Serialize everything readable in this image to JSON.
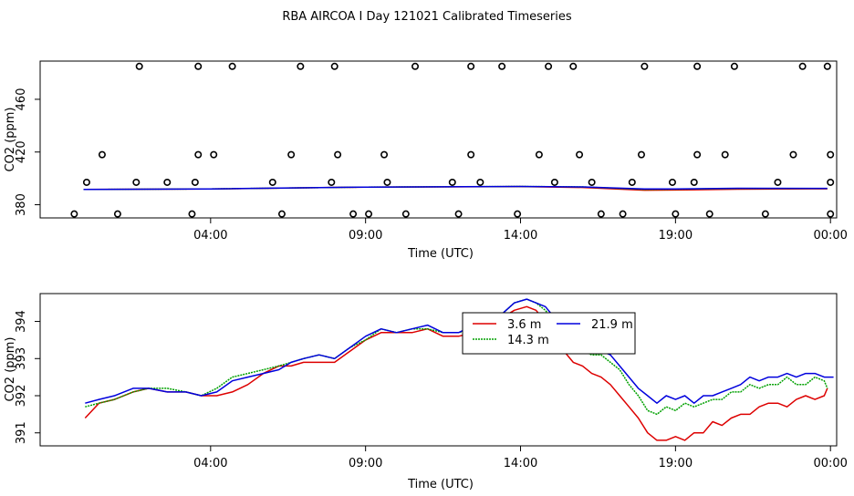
{
  "chart_data": [
    {
      "type": "scatter",
      "title": "RBA AIRCOA I  Day 121021  Calibrated Timeseries",
      "xlabel": "Time (UTC)",
      "ylabel": "CO2 (ppm)",
      "xlim": [
        -1.5,
        24.2
      ],
      "ylim": [
        370,
        489
      ],
      "xticks": [
        {
          "value": 4,
          "label": "04:00"
        },
        {
          "value": 9,
          "label": "09:00"
        },
        {
          "value": 14,
          "label": "14:00"
        },
        {
          "value": 19,
          "label": "19:00"
        },
        {
          "value": 24,
          "label": "00:00"
        }
      ],
      "yticks": [
        {
          "value": 380,
          "label": "380"
        },
        {
          "value": 420,
          "label": "420"
        },
        {
          "value": 460,
          "label": "460"
        }
      ],
      "points": {
        "x": [
          -0.4,
          1.0,
          3.4,
          6.3,
          8.6,
          9.1,
          10.3,
          12.0,
          13.9,
          16.6,
          17.3,
          19.0,
          20.1,
          21.9,
          24.0,
          0.0,
          1.6,
          2.6,
          3.5,
          6.0,
          7.9,
          9.7,
          11.8,
          12.7,
          15.1,
          16.3,
          17.6,
          18.9,
          19.6,
          22.3,
          24.0,
          0.5,
          3.6,
          4.1,
          6.6,
          8.1,
          9.6,
          12.4,
          14.6,
          15.9,
          17.9,
          19.7,
          20.6,
          22.8,
          24.0,
          1.7,
          3.6,
          4.7,
          6.9,
          8.0,
          10.6,
          12.4,
          13.4,
          14.9,
          15.7,
          18.0,
          19.7,
          20.9,
          23.1,
          23.9
        ],
        "y": [
          373,
          373,
          373,
          373,
          373,
          373,
          373,
          373,
          373,
          373,
          373,
          373,
          373,
          373,
          373,
          397,
          397,
          397,
          397,
          397,
          397,
          397,
          397,
          397,
          397,
          397,
          397,
          397,
          397,
          397,
          397,
          418,
          418,
          418,
          418,
          418,
          418,
          418,
          418,
          418,
          418,
          418,
          418,
          418,
          418,
          485,
          485,
          485,
          485,
          485,
          485,
          485,
          485,
          485,
          485,
          485,
          485,
          485,
          485,
          485
        ]
      },
      "series": [
        {
          "name": "3.6 m",
          "color": "#dd0000",
          "x": [
            -0.1,
            4,
            9,
            14,
            16,
            18,
            19,
            21,
            23.9
          ],
          "values": [
            391.6,
            391.9,
            393.4,
            393.8,
            393.1,
            391.0,
            391.2,
            391.8,
            392.1
          ]
        },
        {
          "name": "14.3 m",
          "color": "#00a000",
          "x": [
            -0.1,
            4,
            9,
            14,
            16,
            18,
            19,
            21,
            23.9
          ],
          "values": [
            391.6,
            392.0,
            393.4,
            393.9,
            393.5,
            391.6,
            391.8,
            392.3,
            392.3
          ]
        },
        {
          "name": "21.9 m",
          "color": "#0000dd",
          "x": [
            -0.1,
            4,
            9,
            14,
            16,
            18,
            19,
            21,
            23.9
          ],
          "values": [
            391.6,
            392.0,
            393.4,
            393.9,
            393.5,
            392.0,
            392.0,
            392.5,
            392.4
          ]
        }
      ]
    },
    {
      "type": "line",
      "xlabel": "Time (UTC)",
      "ylabel": "CO2 (ppm)",
      "xlim": [
        -1.5,
        24.2
      ],
      "ylim": [
        390.65,
        394.75
      ],
      "xticks": [
        {
          "value": 4,
          "label": "04:00"
        },
        {
          "value": 9,
          "label": "09:00"
        },
        {
          "value": 14,
          "label": "14:00"
        },
        {
          "value": 19,
          "label": "19:00"
        },
        {
          "value": 24,
          "label": "00:00"
        }
      ],
      "yticks": [
        {
          "value": 391,
          "label": "391"
        },
        {
          "value": 392,
          "label": "392"
        },
        {
          "value": 393,
          "label": "393"
        },
        {
          "value": 394,
          "label": "394"
        }
      ],
      "legend_position": "top-right",
      "series": [
        {
          "name": "3.6 m",
          "color": "#dd0000",
          "x": [
            -0.05,
            0.4,
            0.9,
            1.5,
            2.0,
            2.6,
            3.2,
            3.7,
            4.2,
            4.7,
            5.2,
            5.7,
            6.2,
            6.6,
            7.0,
            7.5,
            8.0,
            8.5,
            9.0,
            9.5,
            10.0,
            10.5,
            11.0,
            11.5,
            12.0,
            12.5,
            13.0,
            13.4,
            13.8,
            14.2,
            14.5,
            14.8,
            15.1,
            15.4,
            15.7,
            16.0,
            16.3,
            16.6,
            16.9,
            17.2,
            17.5,
            17.8,
            18.1,
            18.4,
            18.7,
            19.0,
            19.3,
            19.6,
            19.9,
            20.2,
            20.5,
            20.8,
            21.1,
            21.4,
            21.7,
            22.0,
            22.3,
            22.6,
            22.9,
            23.2,
            23.5,
            23.8,
            23.9
          ],
          "values": [
            391.4,
            391.8,
            391.9,
            392.1,
            392.2,
            392.1,
            392.1,
            392.0,
            392.0,
            392.1,
            392.3,
            392.6,
            392.8,
            392.8,
            392.9,
            392.9,
            392.9,
            393.2,
            393.5,
            393.7,
            393.7,
            393.7,
            393.8,
            393.6,
            393.6,
            393.7,
            393.9,
            394.1,
            394.3,
            394.4,
            394.3,
            394.0,
            393.6,
            393.2,
            392.9,
            392.8,
            392.6,
            392.5,
            392.3,
            392.0,
            391.7,
            391.4,
            391.0,
            390.8,
            390.8,
            390.9,
            390.8,
            391.0,
            391.0,
            391.3,
            391.2,
            391.4,
            391.5,
            391.5,
            391.7,
            391.8,
            391.8,
            391.7,
            391.9,
            392.0,
            391.9,
            392.0,
            392.2
          ]
        },
        {
          "name": "14.3 m",
          "color": "#00a000",
          "x": [
            -0.05,
            0.4,
            0.9,
            1.5,
            2.0,
            2.6,
            3.2,
            3.7,
            4.2,
            4.7,
            5.2,
            5.7,
            6.2,
            6.6,
            7.0,
            7.5,
            8.0,
            8.5,
            9.0,
            9.5,
            10.0,
            10.5,
            11.0,
            11.5,
            12.0,
            12.5,
            13.0,
            13.4,
            13.8,
            14.2,
            14.5,
            14.8,
            15.1,
            15.4,
            15.7,
            16.0,
            16.3,
            16.6,
            16.9,
            17.2,
            17.5,
            17.8,
            18.1,
            18.4,
            18.7,
            19.0,
            19.3,
            19.6,
            19.9,
            20.2,
            20.5,
            20.8,
            21.1,
            21.4,
            21.7,
            22.0,
            22.3,
            22.6,
            22.9,
            23.2,
            23.5,
            23.8,
            23.9
          ],
          "values": [
            391.7,
            391.8,
            391.9,
            392.1,
            392.2,
            392.2,
            392.1,
            392.0,
            392.2,
            392.5,
            392.6,
            392.7,
            392.8,
            392.9,
            393.0,
            393.1,
            393.0,
            393.3,
            393.5,
            393.8,
            393.7,
            393.8,
            393.8,
            393.7,
            393.7,
            393.8,
            394.0,
            394.2,
            394.5,
            394.6,
            394.5,
            394.3,
            394.0,
            393.7,
            393.4,
            393.2,
            393.1,
            393.1,
            392.9,
            392.7,
            392.3,
            392.0,
            391.6,
            391.5,
            391.7,
            391.6,
            391.8,
            391.7,
            391.8,
            391.9,
            391.9,
            392.1,
            392.1,
            392.3,
            392.2,
            392.3,
            392.3,
            392.5,
            392.3,
            392.3,
            392.5,
            392.4,
            392.2
          ]
        },
        {
          "name": "21.9 m",
          "color": "#0000dd",
          "x": [
            -0.05,
            0.4,
            0.9,
            1.5,
            2.0,
            2.6,
            3.2,
            3.7,
            4.2,
            4.7,
            5.2,
            5.7,
            6.2,
            6.6,
            7.0,
            7.5,
            8.0,
            8.5,
            9.0,
            9.5,
            10.0,
            10.5,
            11.0,
            11.5,
            12.0,
            12.5,
            13.0,
            13.4,
            13.8,
            14.2,
            14.5,
            14.8,
            15.1,
            15.4,
            15.7,
            16.0,
            16.3,
            16.6,
            16.9,
            17.2,
            17.5,
            17.8,
            18.1,
            18.4,
            18.7,
            19.0,
            19.3,
            19.6,
            19.9,
            20.2,
            20.5,
            20.8,
            21.1,
            21.4,
            21.7,
            22.0,
            22.3,
            22.6,
            22.9,
            23.2,
            23.5,
            23.8,
            24.1
          ],
          "values": [
            391.8,
            391.9,
            392.0,
            392.2,
            392.2,
            392.1,
            392.1,
            392.0,
            392.1,
            392.4,
            392.5,
            392.6,
            392.7,
            392.9,
            393.0,
            393.1,
            393.0,
            393.3,
            393.6,
            393.8,
            393.7,
            393.8,
            393.9,
            393.7,
            393.7,
            393.9,
            394.0,
            394.2,
            394.5,
            394.6,
            394.5,
            394.4,
            394.1,
            393.9,
            393.6,
            393.5,
            393.3,
            393.2,
            393.1,
            392.8,
            392.5,
            392.2,
            392.0,
            391.8,
            392.0,
            391.9,
            392.0,
            391.8,
            392.0,
            392.0,
            392.1,
            392.2,
            392.3,
            392.5,
            392.4,
            392.5,
            392.5,
            392.6,
            392.5,
            392.6,
            392.6,
            392.5,
            392.5
          ]
        }
      ]
    }
  ]
}
